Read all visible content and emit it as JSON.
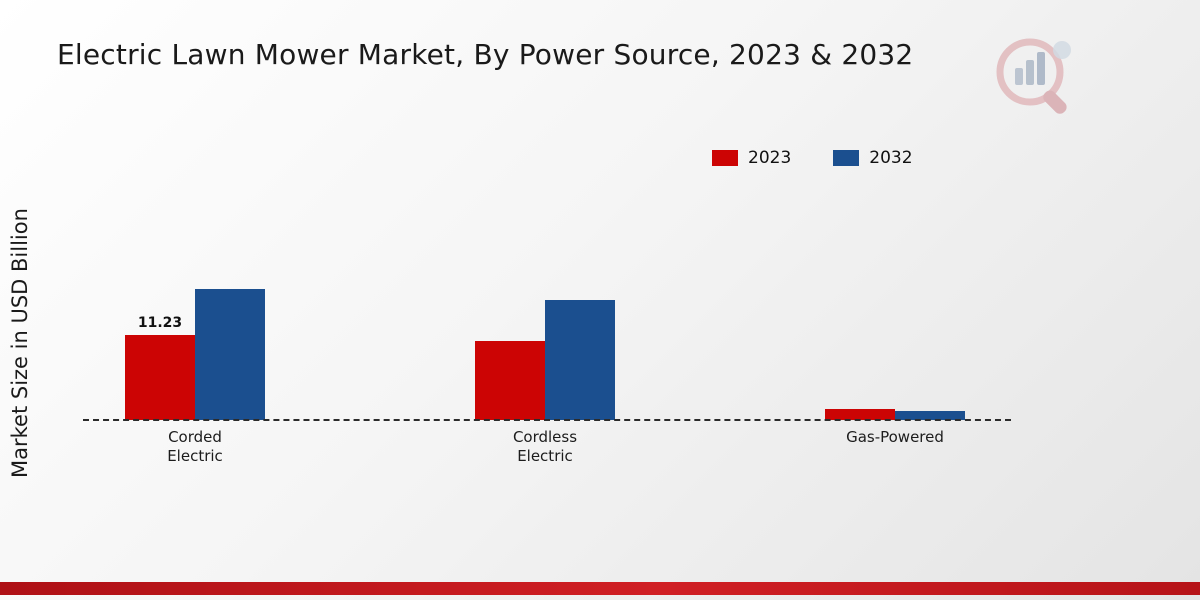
{
  "chart_data": {
    "type": "bar",
    "title": "Electric Lawn Mower Market, By Power Source, 2023 & 2032",
    "ylabel": "Market Size in USD Billion",
    "categories": [
      "Corded Electric",
      "Cordless Electric",
      "Gas-Powered"
    ],
    "category_label_lines": [
      [
        "Corded",
        "Electric"
      ],
      [
        "Cordless",
        "Electric"
      ],
      [
        "Gas-Powered"
      ]
    ],
    "series": [
      {
        "name": "2023",
        "color": "#cc0404",
        "values": [
          11.23,
          10.4,
          1.5
        ]
      },
      {
        "name": "2032",
        "color": "#1b4f8f",
        "values": [
          17.2,
          15.8,
          1.2
        ]
      }
    ],
    "annotations": [
      {
        "series": "2023",
        "category": "Corded Electric",
        "text": "11.23"
      }
    ],
    "baseline_style": "dashed",
    "legend_position": "top-right",
    "ylim": [
      0,
      20
    ],
    "grid": false
  },
  "branding": {
    "logo_name": "market-research-chart-logo"
  }
}
